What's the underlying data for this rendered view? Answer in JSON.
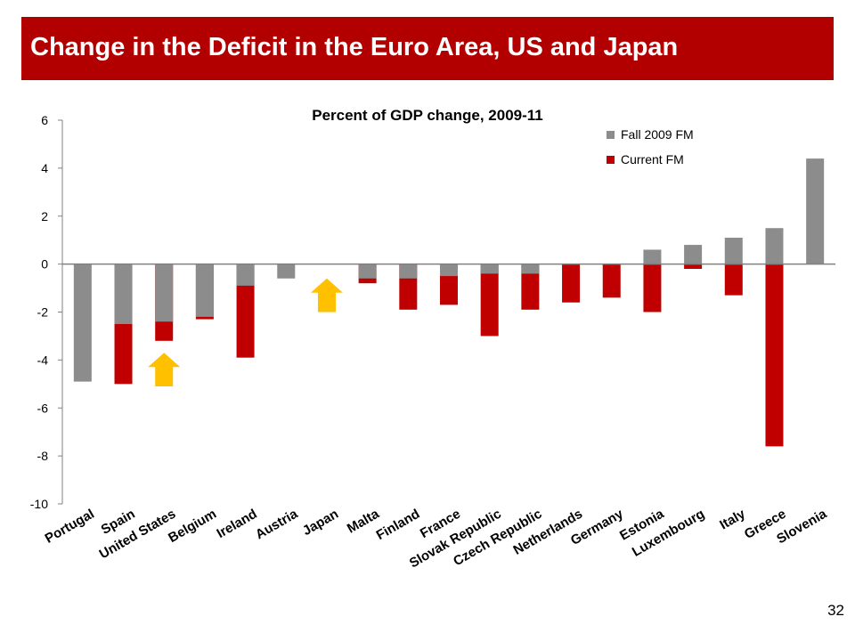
{
  "slide": {
    "title": "Change in the Deficit in the Euro Area, US and Japan",
    "page_number": "32"
  },
  "chart_data": {
    "type": "bar",
    "title": "Percent of GDP change, 2009-11",
    "xlabel": "",
    "ylabel": "",
    "ylim": [
      -10,
      6
    ],
    "yticks": [
      6,
      4,
      2,
      0,
      -2,
      -4,
      -6,
      -8,
      -10
    ],
    "grid": false,
    "legend_position": "top-right",
    "categories": [
      "Portugal",
      "Spain",
      "United States",
      "Belgium",
      "Ireland",
      "Austria",
      "Japan",
      "Malta",
      "Finland",
      "France",
      "Slovak Republic",
      "Czech Republic",
      "Netherlands",
      "Germany",
      "Estonia",
      "Luxembourg",
      "Italy",
      "Greece",
      "Slovenia"
    ],
    "series": [
      {
        "name": "Fall 2009 FM",
        "color": "#8c8c8c",
        "values": [
          -4.9,
          -2.5,
          -2.4,
          -2.2,
          -0.9,
          -0.6,
          null,
          -0.6,
          -0.6,
          -0.5,
          -0.4,
          -0.4,
          0.0,
          0.0,
          0.6,
          0.8,
          1.1,
          1.5,
          4.4
        ]
      },
      {
        "name": "Current FM",
        "color": "#c00000",
        "values": [
          null,
          -5.0,
          -3.2,
          -2.3,
          -3.9,
          null,
          null,
          -0.8,
          -1.9,
          -1.7,
          -3.0,
          -1.9,
          -1.6,
          -1.4,
          -2.0,
          -0.2,
          -1.3,
          -7.6,
          null
        ]
      }
    ],
    "annotations": [
      {
        "type": "up-arrow",
        "category": "United States",
        "color": "#ffc000",
        "from": -5.1,
        "to": -3.7
      },
      {
        "type": "up-arrow",
        "category": "Japan",
        "color": "#ffc000",
        "from": -2.0,
        "to": -0.6
      }
    ]
  }
}
